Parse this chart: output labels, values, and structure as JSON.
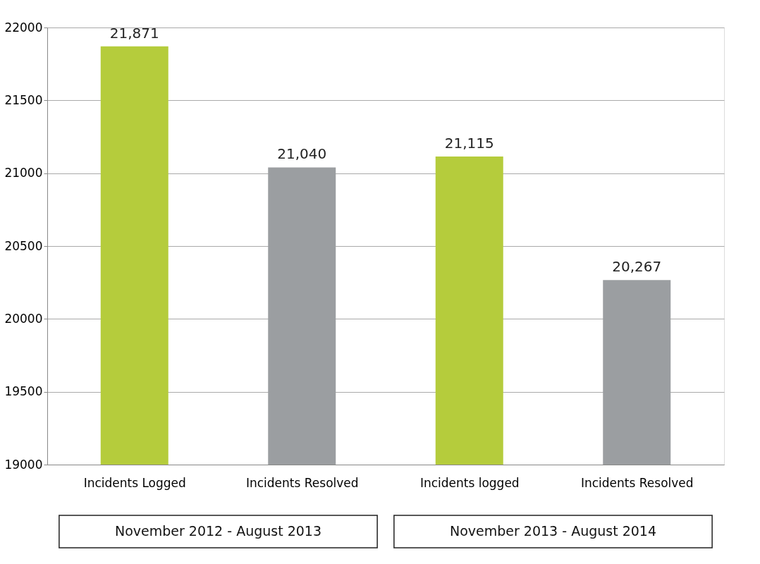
{
  "chart_data": {
    "type": "bar",
    "categories": [
      "Incidents Logged",
      "Incidents Resolved",
      "Incidents logged",
      "Incidents Resolved"
    ],
    "values": [
      21871,
      21040,
      21115,
      20267
    ],
    "colors": [
      "#b5cc3c",
      "#9b9ea1",
      "#b5cc3c",
      "#9b9ea1"
    ],
    "value_labels": [
      "21,871",
      "21,040",
      "21,115",
      "20,267"
    ],
    "ylim": [
      19000,
      22000
    ],
    "yticks": [
      19000,
      19500,
      20000,
      20500,
      21000,
      21500,
      22000
    ],
    "grid": "y",
    "annotations": [
      "November  2012 - August 2013",
      "November  2013 - August 2014"
    ]
  }
}
